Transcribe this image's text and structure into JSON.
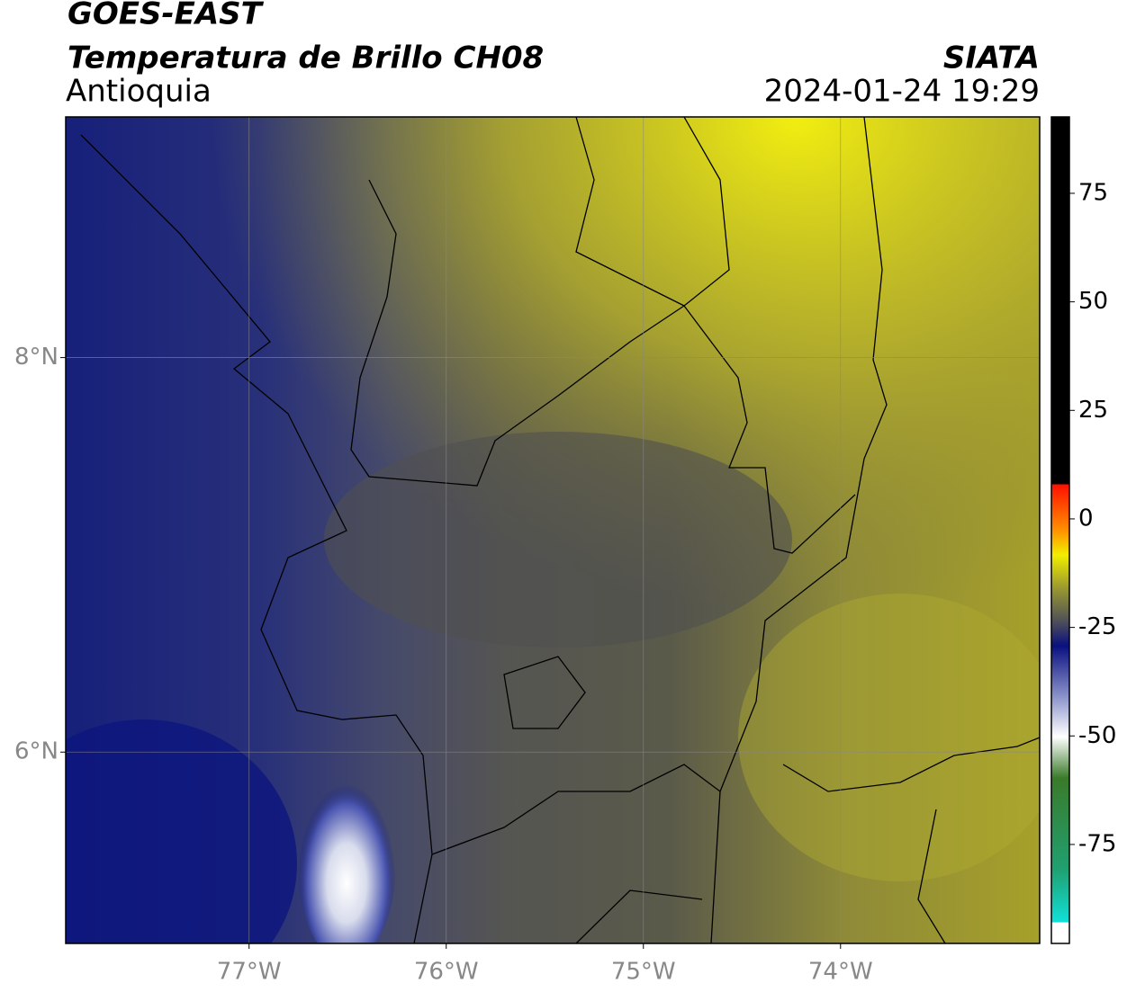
{
  "header": {
    "title": "GOES-EAST",
    "subtitle": "Temperatura de Brillo CH08",
    "region": "Antioquia",
    "source": "SIATA",
    "datetime": "2024-01-24 19:29"
  },
  "map": {
    "xlim": [
      -77.93,
      -72.99
    ],
    "ylim": [
      5.03,
      9.22
    ],
    "xticks": [
      {
        "value": -77,
        "label": "77°W"
      },
      {
        "value": -76,
        "label": "76°W"
      },
      {
        "value": -75,
        "label": "75°W"
      },
      {
        "value": -74,
        "label": "74°W"
      }
    ],
    "yticks": [
      {
        "value": 8,
        "label": "8°N"
      },
      {
        "value": 6,
        "label": "6°N"
      }
    ],
    "grid": true
  },
  "colorbar": {
    "lim": [
      -97.8,
      92.6
    ],
    "ticks": [
      75,
      50,
      25,
      0,
      -25,
      -50,
      -75
    ]
  }
}
